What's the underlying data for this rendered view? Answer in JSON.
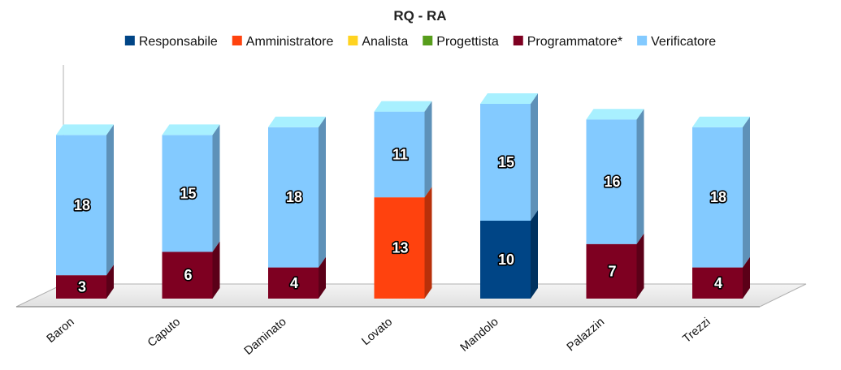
{
  "chart_data": {
    "type": "bar",
    "stacked": true,
    "title": "RQ - RA",
    "xlabel": "",
    "ylabel": "",
    "ylim": [
      0,
      26
    ],
    "grid": false,
    "legend_position": "top",
    "categories": [
      "Baron",
      "Caputo",
      "Daminato",
      "Lovato",
      "Mandolo",
      "Palazzin",
      "Trezzi"
    ],
    "series": [
      {
        "name": "Responsabile",
        "color": "#004586",
        "values": [
          0,
          0,
          0,
          0,
          10,
          0,
          0
        ]
      },
      {
        "name": "Amministratore",
        "color": "#ff420e",
        "values": [
          0,
          0,
          0,
          13,
          0,
          0,
          0
        ]
      },
      {
        "name": "Analista",
        "color": "#ffd320",
        "values": [
          0,
          0,
          0,
          0,
          0,
          0,
          0
        ]
      },
      {
        "name": "Progettista",
        "color": "#579d1c",
        "values": [
          0,
          0,
          0,
          0,
          0,
          0,
          0
        ]
      },
      {
        "name": "Programmatore*",
        "color": "#7e0021",
        "values": [
          3,
          6,
          4,
          0,
          0,
          7,
          4
        ]
      },
      {
        "name": "Verificatore",
        "color": "#83caff",
        "values": [
          18,
          15,
          18,
          11,
          15,
          16,
          18
        ]
      }
    ]
  }
}
